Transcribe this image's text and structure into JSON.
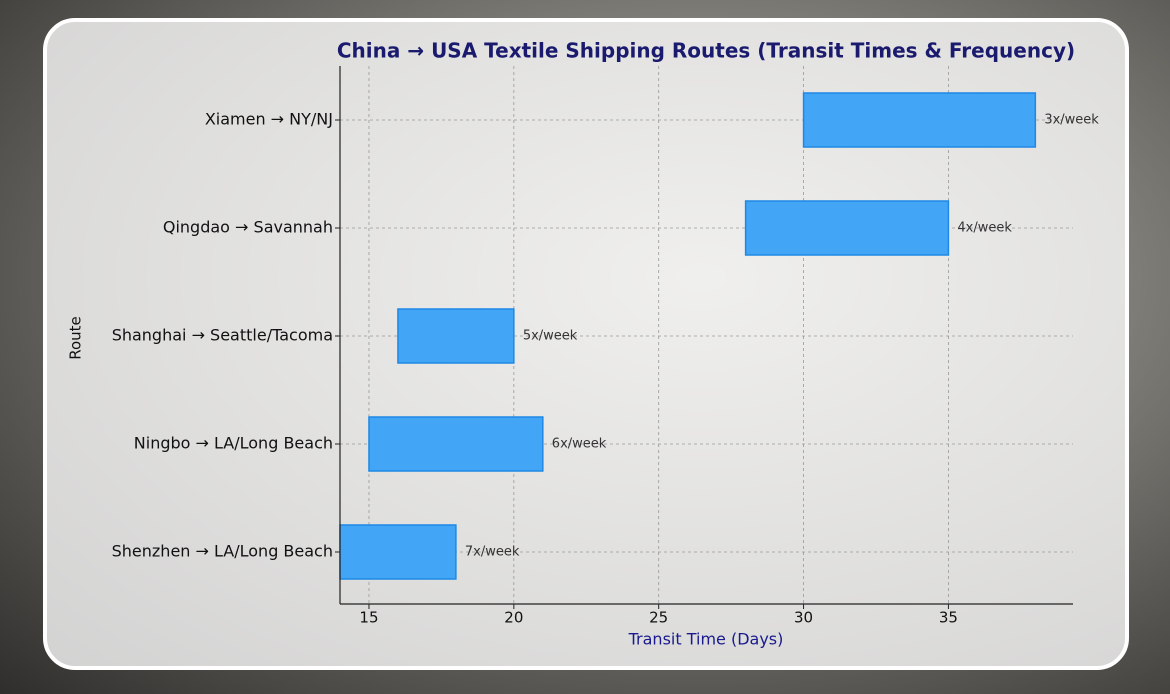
{
  "chart_data": {
    "type": "range-bar",
    "title": "China → USA Textile Shipping Routes (Transit Times & Frequency)",
    "x_label": "Transit Time (Days)",
    "y_label": "Route",
    "categories": [
      "Shenzhen → LA/Long Beach",
      "Ningbo → LA/Long Beach",
      "Shanghai → Seattle/Tacoma",
      "Qingdao → Savannah",
      "Xiamen → NY/NJ"
    ],
    "start": [
      14,
      15,
      16,
      28,
      30
    ],
    "end": [
      18,
      21,
      20,
      35,
      38
    ],
    "annotations": [
      "7x/week",
      "6x/week",
      "5x/week",
      "4x/week",
      "3x/week"
    ],
    "color": "#42a5f5",
    "edge_color": "#1e88e5",
    "xlim": [
      14,
      39.3
    ],
    "xticks": [
      15,
      20,
      25,
      30,
      35
    ],
    "grid": true
  }
}
